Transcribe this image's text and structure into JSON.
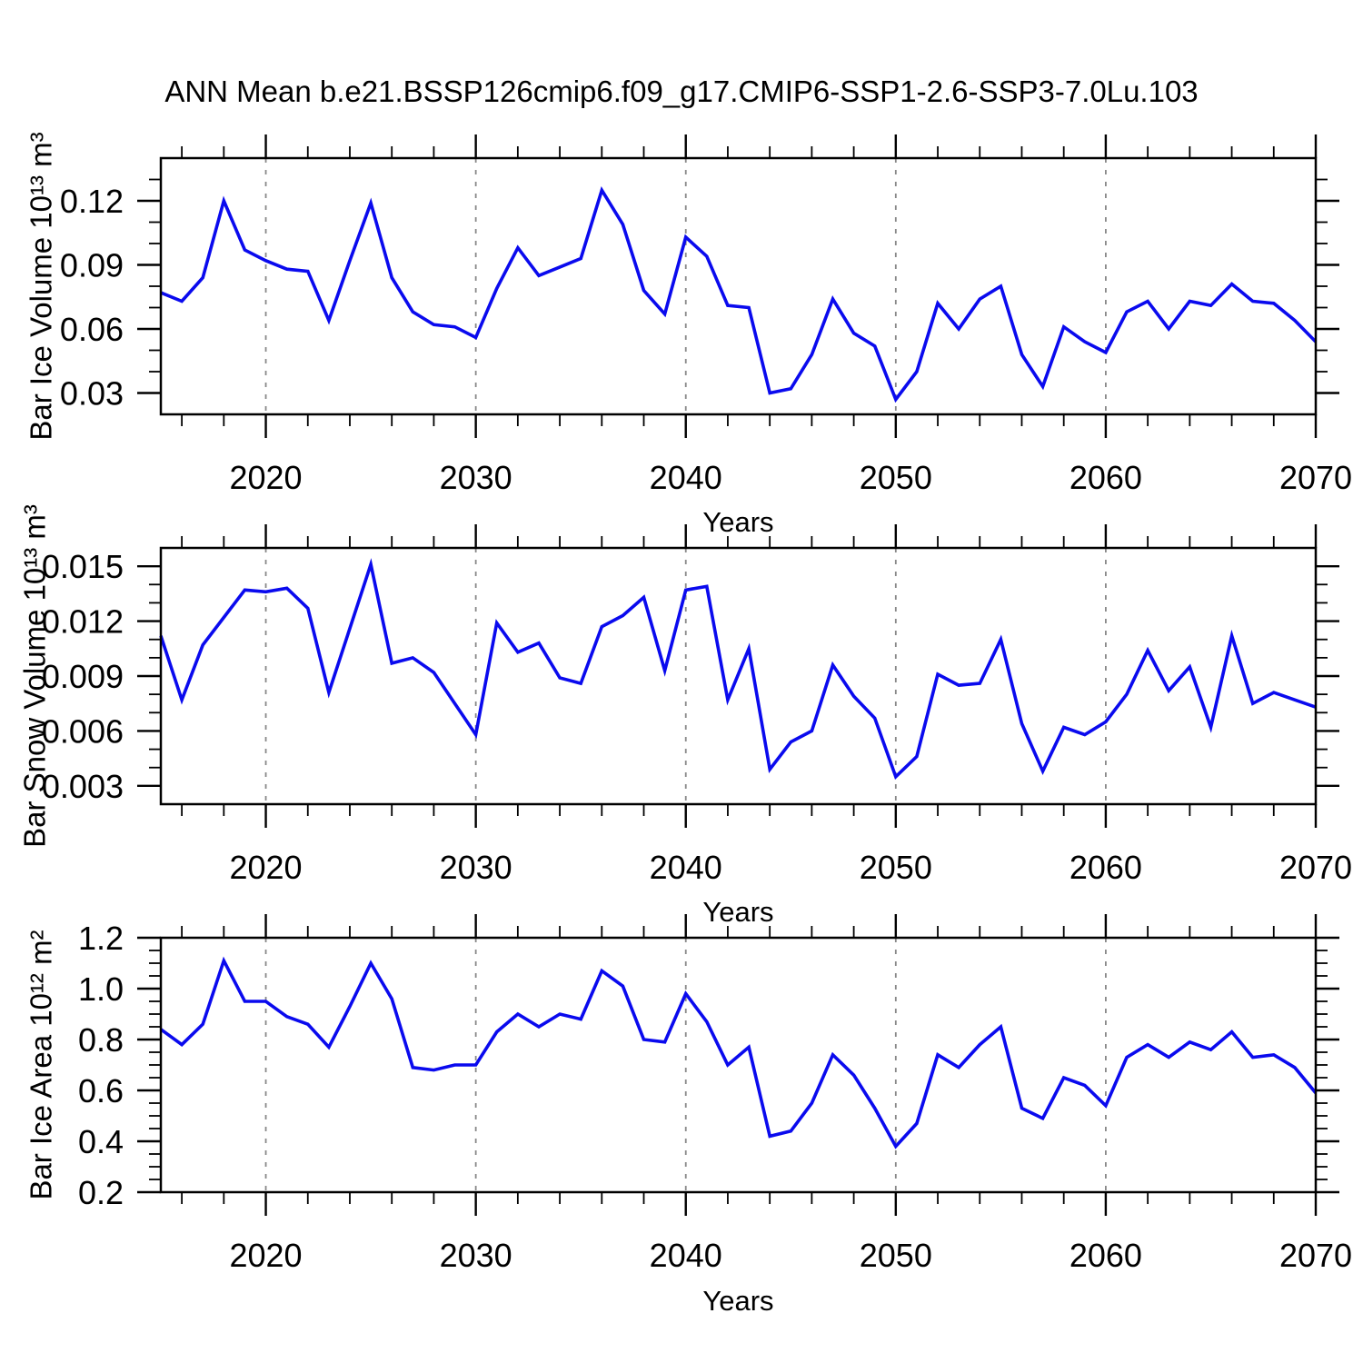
{
  "title": "ANN Mean b.e21.BSSP126cmip6.f09_g17.CMIP6-SSP1-2.6-SSP3-7.0Lu.103",
  "chart_data": {
    "type": "line",
    "title": "ANN Mean b.e21.BSSP126cmip6.f09_g17.CMIP6-SSP1-2.6-SSP3-7.0Lu.103",
    "line_color": "#0a0aee",
    "gridline_color": "#888888",
    "legend": "none",
    "grid": "vertical dashed at decades",
    "years": [
      2015,
      2016,
      2017,
      2018,
      2019,
      2020,
      2021,
      2022,
      2023,
      2024,
      2025,
      2026,
      2027,
      2028,
      2029,
      2030,
      2031,
      2032,
      2033,
      2034,
      2035,
      2036,
      2037,
      2038,
      2039,
      2040,
      2041,
      2042,
      2043,
      2044,
      2045,
      2046,
      2047,
      2048,
      2049,
      2050,
      2051,
      2052,
      2053,
      2054,
      2055,
      2056,
      2057,
      2058,
      2059,
      2060,
      2061,
      2062,
      2063,
      2064,
      2065,
      2066,
      2067,
      2068,
      2069,
      2070
    ],
    "x_axis": {
      "min": 2015,
      "max": 2070,
      "major_ticks": [
        {
          "value": 2020,
          "label": "2020"
        },
        {
          "value": 2030,
          "label": "2030"
        },
        {
          "value": 2040,
          "label": "2040"
        },
        {
          "value": 2050,
          "label": "2050"
        },
        {
          "value": 2060,
          "label": "2060"
        },
        {
          "value": 2070,
          "label": "2070"
        }
      ],
      "minor_tick_step": 2,
      "gridlines": [
        2020,
        2030,
        2040,
        2050,
        2060
      ]
    },
    "panels": [
      {
        "name": "bar-ice-volume",
        "ylabel": "Bar Ice Volume 10¹³ m³",
        "xlabel": "Years",
        "ylim": [
          0.02,
          0.14
        ],
        "yminor_step": 0.01,
        "yticks": [
          {
            "value": 0.12,
            "label": "0.12"
          },
          {
            "value": 0.09,
            "label": "0.09"
          },
          {
            "value": 0.06,
            "label": "0.06"
          },
          {
            "value": 0.03,
            "label": "0.03"
          }
        ],
        "values": [
          0.077,
          0.073,
          0.084,
          0.12,
          0.097,
          0.092,
          0.088,
          0.087,
          0.064,
          0.092,
          0.119,
          0.084,
          0.068,
          0.062,
          0.061,
          0.056,
          0.079,
          0.098,
          0.085,
          0.089,
          0.093,
          0.125,
          0.109,
          0.078,
          0.067,
          0.103,
          0.094,
          0.071,
          0.07,
          0.03,
          0.032,
          0.048,
          0.074,
          0.058,
          0.052,
          0.027,
          0.04,
          0.072,
          0.06,
          0.074,
          0.08,
          0.048,
          0.033,
          0.061,
          0.054,
          0.049,
          0.068,
          0.073,
          0.06,
          0.073,
          0.071,
          0.081,
          0.073,
          0.072,
          0.064,
          0.054
        ]
      },
      {
        "name": "bar-snow-volume",
        "ylabel": "Bar Snow Volume 10¹³ m³",
        "xlabel": "Years",
        "ylim": [
          0.002,
          0.016
        ],
        "yminor_step": 0.001,
        "yticks": [
          {
            "value": 0.015,
            "label": "0.015"
          },
          {
            "value": 0.012,
            "label": "0.012"
          },
          {
            "value": 0.009,
            "label": "0.009"
          },
          {
            "value": 0.006,
            "label": "0.006"
          },
          {
            "value": 0.003,
            "label": "0.003"
          }
        ],
        "values": [
          0.0112,
          0.0077,
          0.0107,
          0.0122,
          0.0137,
          0.0136,
          0.0138,
          0.0127,
          0.0081,
          0.0116,
          0.0151,
          0.0097,
          0.01,
          0.0092,
          0.0075,
          0.0058,
          0.0119,
          0.0103,
          0.0108,
          0.0089,
          0.0086,
          0.0117,
          0.0123,
          0.0133,
          0.0093,
          0.0137,
          0.0139,
          0.0077,
          0.0105,
          0.0039,
          0.0054,
          0.006,
          0.0096,
          0.0079,
          0.0067,
          0.0035,
          0.0046,
          0.0091,
          0.0085,
          0.0086,
          0.011,
          0.0064,
          0.0038,
          0.0062,
          0.0058,
          0.0065,
          0.008,
          0.0104,
          0.0082,
          0.0095,
          0.0062,
          0.0112,
          0.0075,
          0.0081,
          0.0077,
          0.0073
        ]
      },
      {
        "name": "bar-ice-area",
        "ylabel": "Bar Ice Area 10¹² m²",
        "xlabel": "Years",
        "ylim": [
          0.2,
          1.2
        ],
        "yminor_step": 0.05,
        "yticks": [
          {
            "value": 1.2,
            "label": "1.2"
          },
          {
            "value": 1.0,
            "label": "1.0"
          },
          {
            "value": 0.8,
            "label": "0.8"
          },
          {
            "value": 0.6,
            "label": "0.6"
          },
          {
            "value": 0.4,
            "label": "0.4"
          },
          {
            "value": 0.2,
            "label": "0.2"
          }
        ],
        "values": [
          0.84,
          0.78,
          0.86,
          1.11,
          0.95,
          0.95,
          0.89,
          0.86,
          0.77,
          0.93,
          1.1,
          0.96,
          0.69,
          0.68,
          0.7,
          0.7,
          0.83,
          0.9,
          0.85,
          0.9,
          0.88,
          1.07,
          1.01,
          0.8,
          0.79,
          0.98,
          0.87,
          0.7,
          0.77,
          0.42,
          0.44,
          0.55,
          0.74,
          0.66,
          0.53,
          0.38,
          0.47,
          0.74,
          0.69,
          0.78,
          0.85,
          0.53,
          0.49,
          0.65,
          0.62,
          0.54,
          0.73,
          0.78,
          0.73,
          0.79,
          0.76,
          0.83,
          0.73,
          0.74,
          0.69,
          0.59
        ]
      }
    ]
  }
}
